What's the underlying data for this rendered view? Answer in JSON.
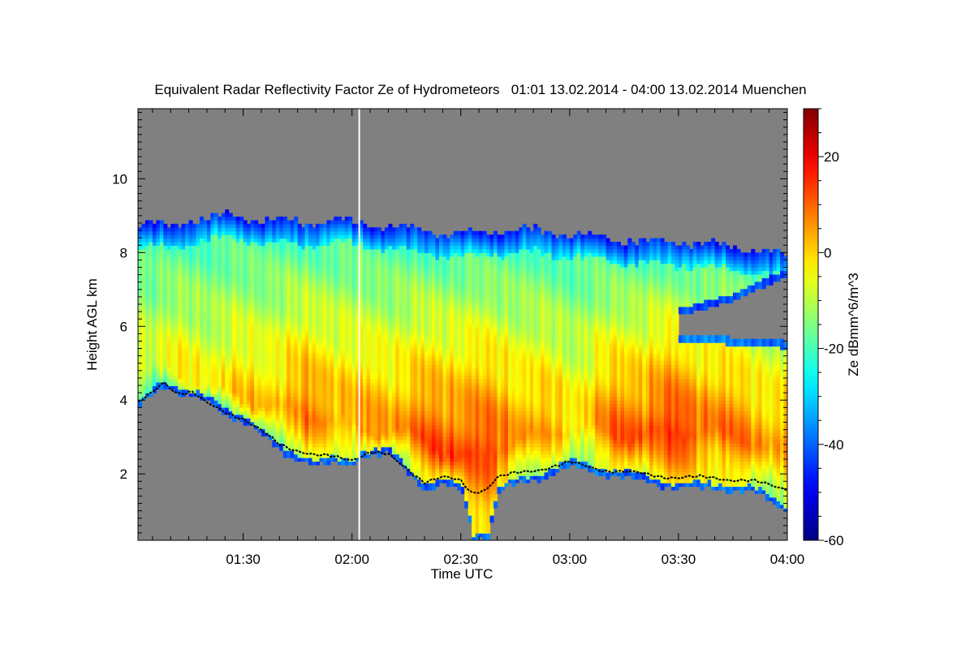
{
  "chart_data": {
    "type": "heatmap",
    "title": "Equivalent Radar Reflectivity Factor Ze of Hydrometeors   01:01 13.02.2014 - 04:00 13.02.2014 Muenchen",
    "xlabel": "Time UTC",
    "ylabel": "Height AGL km",
    "colorbar_label": "Ze dBmm^6/m^3",
    "x_range": [
      "01:01",
      "04:00"
    ],
    "x_tick_labels": [
      "01:30",
      "02:00",
      "02:30",
      "03:00",
      "03:30",
      "04:00"
    ],
    "x_ticks": [
      "01:30",
      "02:00",
      "02:30",
      "03:00",
      "03:30",
      "04:00"
    ],
    "y_range_km": [
      0.2,
      11.9
    ],
    "y_ticks": [
      2,
      4,
      6,
      8,
      10
    ],
    "y_tick_labels": [
      "2",
      "4",
      "6",
      "8",
      "10"
    ],
    "colorbar_range": [
      -60,
      30
    ],
    "colorbar_ticks": [
      -60,
      -40,
      -20,
      0,
      20
    ],
    "colorbar_tick_labels": [
      "-60",
      "-40",
      "-20",
      "0",
      "20"
    ],
    "colormap": "jet",
    "no_signal_color": "#808080",
    "data_gap_line_time": "02:02",
    "data_gap_line_color": "#ffffff",
    "echo_top_km": [
      [
        "01:01",
        8.8
      ],
      [
        "01:10",
        8.7
      ],
      [
        "01:15",
        8.9
      ],
      [
        "01:25",
        9.0
      ],
      [
        "01:35",
        8.9
      ],
      [
        "01:45",
        8.8
      ],
      [
        "01:55",
        8.9
      ],
      [
        "02:02",
        8.8
      ],
      [
        "02:10",
        8.7
      ],
      [
        "02:20",
        8.6
      ],
      [
        "02:30",
        8.5
      ],
      [
        "02:40",
        8.6
      ],
      [
        "02:50",
        8.6
      ],
      [
        "03:00",
        8.5
      ],
      [
        "03:10",
        8.4
      ],
      [
        "03:20",
        8.3
      ],
      [
        "03:30",
        8.3
      ],
      [
        "03:40",
        8.2
      ],
      [
        "03:50",
        8.1
      ],
      [
        "04:00",
        7.9
      ]
    ],
    "echo_base_km": [
      [
        "01:01",
        3.8
      ],
      [
        "01:05",
        4.2
      ],
      [
        "01:08",
        4.4
      ],
      [
        "01:12",
        4.2
      ],
      [
        "01:20",
        3.9
      ],
      [
        "01:30",
        3.4
      ],
      [
        "01:40",
        2.6
      ],
      [
        "01:50",
        2.2
      ],
      [
        "02:00",
        2.3
      ],
      [
        "02:02",
        2.5
      ],
      [
        "02:10",
        2.5
      ],
      [
        "02:20",
        1.6
      ],
      [
        "02:25",
        1.7
      ],
      [
        "02:30",
        1.5
      ],
      [
        "02:33",
        0.3
      ],
      [
        "02:37",
        0.3
      ],
      [
        "02:40",
        1.5
      ],
      [
        "02:45",
        1.7
      ],
      [
        "02:55",
        2.0
      ],
      [
        "03:00",
        2.2
      ],
      [
        "03:10",
        2.0
      ],
      [
        "03:20",
        1.8
      ],
      [
        "03:30",
        1.6
      ],
      [
        "03:40",
        1.6
      ],
      [
        "03:50",
        1.5
      ],
      [
        "04:00",
        1.0
      ]
    ],
    "cloud_base_km": [
      [
        "01:01",
        3.9
      ],
      [
        "01:05",
        4.2
      ],
      [
        "01:08",
        4.5
      ],
      [
        "01:12",
        4.2
      ],
      [
        "01:16",
        4.2
      ],
      [
        "01:20",
        3.9
      ],
      [
        "01:30",
        3.5
      ],
      [
        "01:40",
        2.8
      ],
      [
        "01:50",
        2.5
      ],
      [
        "02:00",
        2.4
      ],
      [
        "02:05",
        2.6
      ],
      [
        "02:10",
        2.5
      ],
      [
        "02:20",
        1.8
      ],
      [
        "02:25",
        1.9
      ],
      [
        "02:30",
        1.8
      ],
      [
        "02:33",
        1.5
      ],
      [
        "02:37",
        1.6
      ],
      [
        "02:40",
        1.9
      ],
      [
        "02:50",
        2.1
      ],
      [
        "03:00",
        2.3
      ],
      [
        "03:10",
        2.1
      ],
      [
        "03:20",
        2.0
      ],
      [
        "03:30",
        1.9
      ],
      [
        "03:40",
        1.9
      ],
      [
        "03:50",
        1.8
      ],
      [
        "04:00",
        1.6
      ]
    ],
    "upper_gap": {
      "from": "03:30",
      "to": "04:00",
      "top_km": [
        [
          "03:30",
          6.3
        ],
        [
          "03:45",
          6.7
        ],
        [
          "04:00",
          7.4
        ]
      ],
      "bottom_km": [
        [
          "03:30",
          5.8
        ],
        [
          "03:45",
          5.7
        ],
        [
          "04:00",
          5.6
        ]
      ]
    },
    "reflectivity_core_dBZ": [
      [
        "01:01",
        -5
      ],
      [
        "01:30",
        0
      ],
      [
        "01:50",
        8
      ],
      [
        "02:02",
        5
      ],
      [
        "02:15",
        8
      ],
      [
        "02:30",
        15
      ],
      [
        "02:45",
        8
      ],
      [
        "03:00",
        0
      ],
      [
        "03:15",
        12
      ],
      [
        "03:30",
        14
      ],
      [
        "03:45",
        8
      ],
      [
        "04:00",
        5
      ]
    ],
    "reflectivity_core_height_km": [
      [
        "01:01",
        5.0
      ],
      [
        "01:30",
        4.0
      ],
      [
        "01:50",
        3.6
      ],
      [
        "02:02",
        3.2
      ],
      [
        "02:15",
        3.1
      ],
      [
        "02:30",
        2.4
      ],
      [
        "02:45",
        2.9
      ],
      [
        "03:00",
        3.3
      ],
      [
        "03:15",
        3.0
      ],
      [
        "03:30",
        3.2
      ],
      [
        "03:45",
        3.0
      ],
      [
        "04:00",
        2.6
      ]
    ]
  }
}
